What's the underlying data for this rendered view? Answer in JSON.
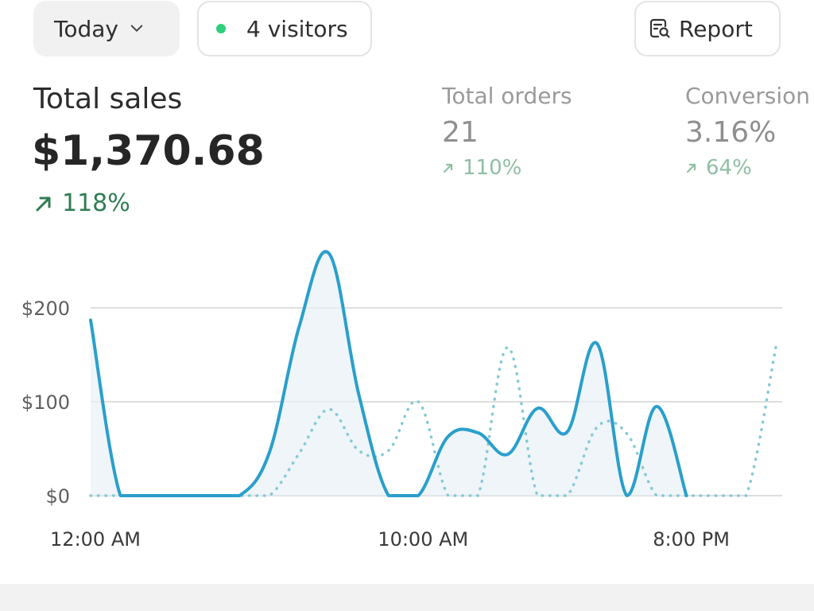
{
  "toolbar": {
    "date_label": "Today",
    "visitors_label": "4 visitors",
    "report_label": "Report",
    "live_dot_color": "#2ecf7a",
    "icons": {
      "date": "chevron-down-icon",
      "report": "report-search-icon"
    }
  },
  "metrics": {
    "total_sales": {
      "title": "Total sales",
      "value": "$1,370.68",
      "delta": "118%"
    },
    "total_orders": {
      "title": "Total orders",
      "value": "21",
      "delta": "110%"
    },
    "conversion": {
      "title": "Conversion",
      "value": "3.16%",
      "delta": "64%"
    }
  },
  "colors": {
    "accent_line": "#2a9fcc",
    "accent_fill": "#e6f0f5",
    "dotted_line": "#86c9d6",
    "positive_green": "#2f7d52",
    "positive_muted": "#8fbfa3"
  },
  "chart_data": {
    "type": "line",
    "title": "",
    "xlabel": "",
    "ylabel": "",
    "ylim": [
      0,
      200
    ],
    "yticks": [
      "$0",
      "$100",
      "$200"
    ],
    "xticks": [
      "12:00 AM",
      "10:00 AM",
      "8:00 PM"
    ],
    "x_hours": [
      0,
      1,
      2,
      3,
      4,
      5,
      6,
      7,
      8,
      9,
      10,
      11,
      12,
      13,
      14,
      15,
      16,
      17,
      18,
      19,
      20,
      21,
      22,
      23
    ],
    "grid": true,
    "series": [
      {
        "style": "solid",
        "values": [
          187,
          0,
          0,
          0,
          0,
          0,
          46,
          180,
          258,
          108,
          0,
          0,
          63,
          67,
          44,
          93,
          68,
          162,
          0,
          95,
          0,
          0,
          0,
          0
        ]
      },
      {
        "style": "dotted",
        "values": [
          0,
          0,
          0,
          0,
          0,
          0,
          0,
          45,
          92,
          48,
          48,
          100,
          0,
          0,
          158,
          0,
          0,
          73,
          66,
          0,
          0,
          0,
          0,
          158
        ]
      }
    ]
  }
}
